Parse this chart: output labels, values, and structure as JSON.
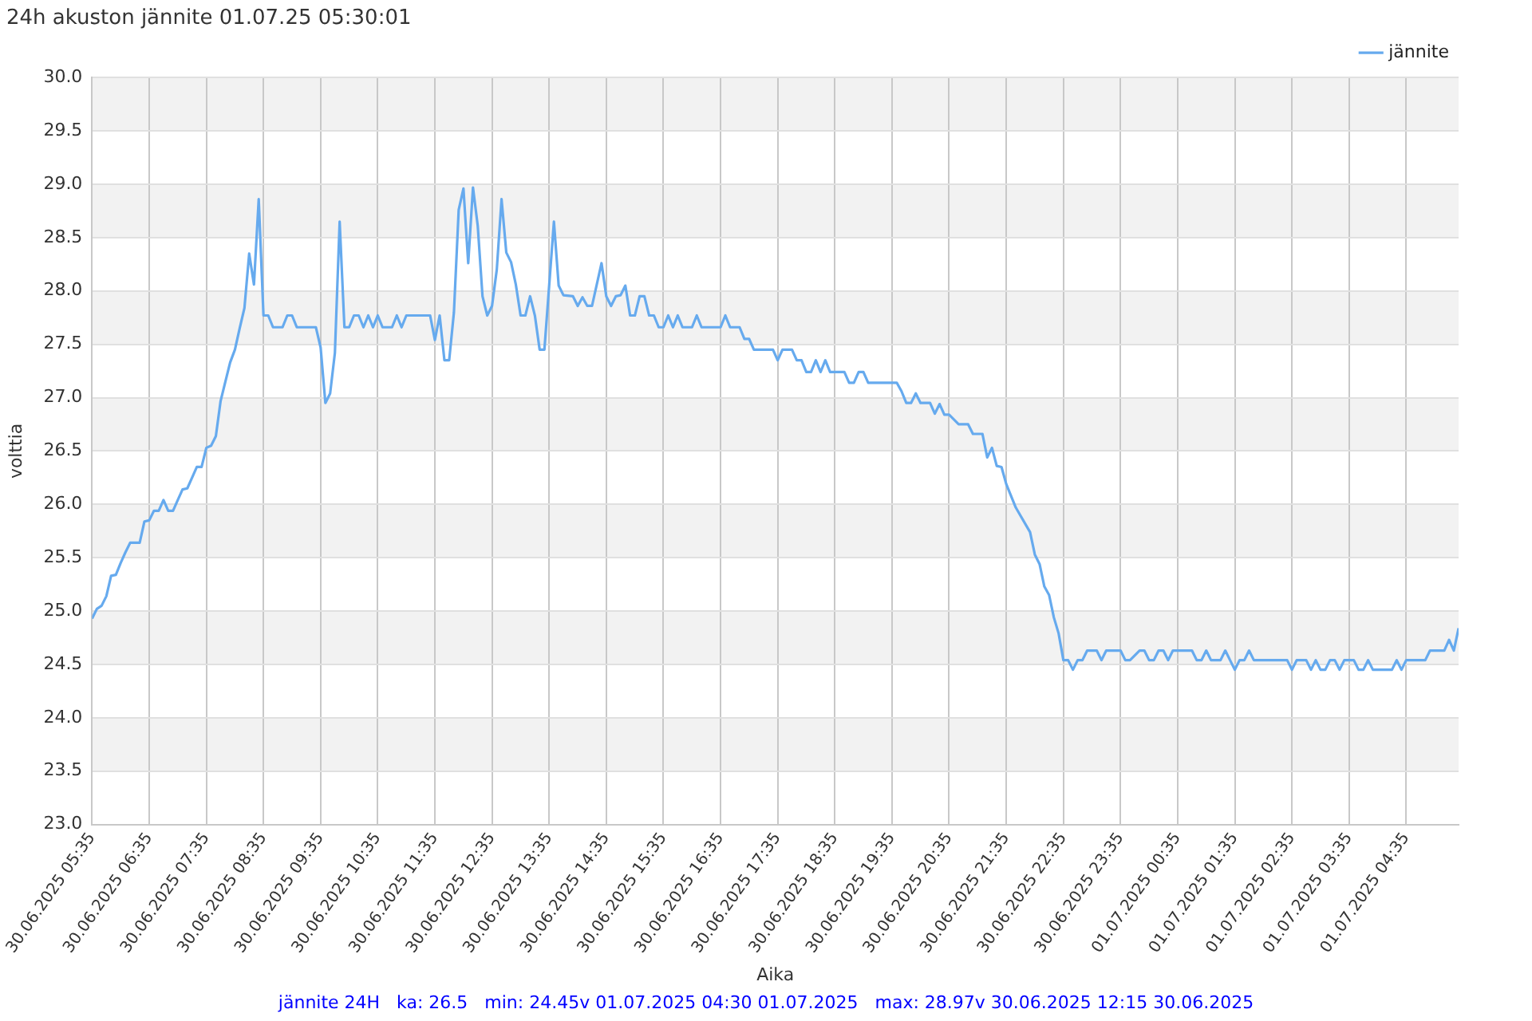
{
  "chart_data": {
    "type": "line",
    "title": "24h akuston jännite 01.07.25 05:30:01",
    "xlabel": "Aika",
    "ylabel": "volttia",
    "annotations": [
      "jännite 24H   ka: 26.5   min: 24.45v 01.07.2025 04:30 01.07.2025   max: 28.97v 30.06.2025 12:15 30.06.2025"
    ],
    "legend": "top right",
    "grid": true,
    "marker": "none",
    "line_style": "solid",
    "xlim": [
      "2025-06-30T05:35",
      "2025-07-01T05:30"
    ],
    "xticks": [
      {
        "value": "2025-06-30T05:35",
        "label": "30.06.2025 05:35"
      },
      {
        "value": "2025-06-30T06:35",
        "label": "30.06.2025 06:35"
      },
      {
        "value": "2025-06-30T07:35",
        "label": "30.06.2025 07:35"
      },
      {
        "value": "2025-06-30T08:35",
        "label": "30.06.2025 08:35"
      },
      {
        "value": "2025-06-30T09:35",
        "label": "30.06.2025 09:35"
      },
      {
        "value": "2025-06-30T10:35",
        "label": "30.06.2025 10:35"
      },
      {
        "value": "2025-06-30T11:35",
        "label": "30.06.2025 11:35"
      },
      {
        "value": "2025-06-30T12:35",
        "label": "30.06.2025 12:35"
      },
      {
        "value": "2025-06-30T13:35",
        "label": "30.06.2025 13:35"
      },
      {
        "value": "2025-06-30T14:35",
        "label": "30.06.2025 14:35"
      },
      {
        "value": "2025-06-30T15:35",
        "label": "30.06.2025 15:35"
      },
      {
        "value": "2025-06-30T16:35",
        "label": "30.06.2025 16:35"
      },
      {
        "value": "2025-06-30T17:35",
        "label": "30.06.2025 17:35"
      },
      {
        "value": "2025-06-30T18:35",
        "label": "30.06.2025 18:35"
      },
      {
        "value": "2025-06-30T19:35",
        "label": "30.06.2025 19:35"
      },
      {
        "value": "2025-06-30T20:35",
        "label": "30.06.2025 20:35"
      },
      {
        "value": "2025-06-30T21:35",
        "label": "30.06.2025 21:35"
      },
      {
        "value": "2025-06-30T22:35",
        "label": "30.06.2025 22:35"
      },
      {
        "value": "2025-06-30T23:35",
        "label": "30.06.2025 23:35"
      },
      {
        "value": "2025-07-01T00:35",
        "label": "01.07.2025 00:35"
      },
      {
        "value": "2025-07-01T01:35",
        "label": "01.07.2025 01:35"
      },
      {
        "value": "2025-07-01T02:35",
        "label": "01.07.2025 02:35"
      },
      {
        "value": "2025-07-01T03:35",
        "label": "01.07.2025 03:35"
      },
      {
        "value": "2025-07-01T04:35",
        "label": "01.07.2025 04:35"
      }
    ],
    "ylim": [
      23,
      30
    ],
    "yticks": [
      {
        "value": 23,
        "label": "23.0"
      },
      23.5,
      {
        "value": 24,
        "label": "24.0"
      },
      24.5,
      {
        "value": 25,
        "label": "25.0"
      },
      25.5,
      {
        "value": 26,
        "label": "26.0"
      },
      26.5,
      {
        "value": 27,
        "label": "27.0"
      },
      27.5,
      {
        "value": 28,
        "label": "28.0"
      },
      28.5,
      {
        "value": 29,
        "label": "29.0"
      },
      29.5,
      {
        "value": 30,
        "label": "30.0"
      }
    ],
    "bands": [
      {
        "axis": "y",
        "from": 23.5,
        "to": 24,
        "color": "#f2f2f2"
      },
      {
        "axis": "y",
        "from": 24.5,
        "to": 25,
        "color": "#f2f2f2"
      },
      {
        "axis": "y",
        "from": 25.5,
        "to": 26,
        "color": "#f2f2f2"
      },
      {
        "axis": "y",
        "from": 26.5,
        "to": 27,
        "color": "#f2f2f2"
      },
      {
        "axis": "y",
        "from": 27.5,
        "to": 28,
        "color": "#f2f2f2"
      },
      {
        "axis": "y",
        "from": 28.5,
        "to": 29,
        "color": "#f2f2f2"
      },
      {
        "axis": "y",
        "from": 29.5,
        "to": 30,
        "color": "#f2f2f2"
      }
    ],
    "x": [
      "2025-06-30T05:35",
      "2025-06-30T05:40",
      "2025-06-30T05:45",
      "2025-06-30T05:50",
      "2025-06-30T05:55",
      "2025-06-30T06:00",
      "2025-06-30T06:05",
      "2025-06-30T06:10",
      "2025-06-30T06:15",
      "2025-06-30T06:25",
      "2025-06-30T06:30",
      "2025-06-30T06:35",
      "2025-06-30T06:40",
      "2025-06-30T06:45",
      "2025-06-30T06:50",
      "2025-06-30T06:55",
      "2025-06-30T07:00",
      "2025-06-30T07:05",
      "2025-06-30T07:10",
      "2025-06-30T07:15",
      "2025-06-30T07:20",
      "2025-06-30T07:25",
      "2025-06-30T07:30",
      "2025-06-30T07:35",
      "2025-06-30T07:40",
      "2025-06-30T07:45",
      "2025-06-30T07:50",
      "2025-06-30T07:55",
      "2025-06-30T08:00",
      "2025-06-30T08:05",
      "2025-06-30T08:10",
      "2025-06-30T08:15",
      "2025-06-30T08:20",
      "2025-06-30T08:25",
      "2025-06-30T08:30",
      "2025-06-30T08:35",
      "2025-06-30T08:40",
      "2025-06-30T08:45",
      "2025-06-30T08:55",
      "2025-06-30T09:00",
      "2025-06-30T09:05",
      "2025-06-30T09:10",
      "2025-06-30T09:30",
      "2025-06-30T09:35",
      "2025-06-30T09:40",
      "2025-06-30T09:45",
      "2025-06-30T09:50",
      "2025-06-30T09:55",
      "2025-06-30T10:00",
      "2025-06-30T10:05",
      "2025-06-30T10:10",
      "2025-06-30T10:15",
      "2025-06-30T10:20",
      "2025-06-30T10:25",
      "2025-06-30T10:30",
      "2025-06-30T10:35",
      "2025-06-30T10:40",
      "2025-06-30T10:50",
      "2025-06-30T10:55",
      "2025-06-30T11:00",
      "2025-06-30T11:05",
      "2025-06-30T11:30",
      "2025-06-30T11:35",
      "2025-06-30T11:40",
      "2025-06-30T11:45",
      "2025-06-30T11:50",
      "2025-06-30T11:55",
      "2025-06-30T12:00",
      "2025-06-30T12:05",
      "2025-06-30T12:10",
      "2025-06-30T12:15",
      "2025-06-30T12:20",
      "2025-06-30T12:25",
      "2025-06-30T12:30",
      "2025-06-30T12:35",
      "2025-06-30T12:40",
      "2025-06-30T12:45",
      "2025-06-30T12:50",
      "2025-06-30T12:55",
      "2025-06-30T13:00",
      "2025-06-30T13:05",
      "2025-06-30T13:10",
      "2025-06-30T13:15",
      "2025-06-30T13:20",
      "2025-06-30T13:25",
      "2025-06-30T13:30",
      "2025-06-30T13:40",
      "2025-06-30T13:45",
      "2025-06-30T13:50",
      "2025-06-30T14:00",
      "2025-06-30T14:05",
      "2025-06-30T14:10",
      "2025-06-30T14:15",
      "2025-06-30T14:20",
      "2025-06-30T14:30",
      "2025-06-30T14:35",
      "2025-06-30T14:40",
      "2025-06-30T14:45",
      "2025-06-30T14:50",
      "2025-06-30T14:55",
      "2025-06-30T15:00",
      "2025-06-30T15:05",
      "2025-06-30T15:10",
      "2025-06-30T15:15",
      "2025-06-30T15:20",
      "2025-06-30T15:25",
      "2025-06-30T15:30",
      "2025-06-30T15:35",
      "2025-06-30T15:40",
      "2025-06-30T15:45",
      "2025-06-30T15:50",
      "2025-06-30T15:55",
      "2025-06-30T16:05",
      "2025-06-30T16:10",
      "2025-06-30T16:15",
      "2025-06-30T16:35",
      "2025-06-30T16:40",
      "2025-06-30T16:45",
      "2025-06-30T16:55",
      "2025-06-30T17:00",
      "2025-06-30T17:05",
      "2025-06-30T17:10",
      "2025-06-30T17:30",
      "2025-06-30T17:35",
      "2025-06-30T17:40",
      "2025-06-30T17:50",
      "2025-06-30T17:55",
      "2025-06-30T18:00",
      "2025-06-30T18:05",
      "2025-06-30T18:10",
      "2025-06-30T18:15",
      "2025-06-30T18:20",
      "2025-06-30T18:25",
      "2025-06-30T18:30",
      "2025-06-30T18:45",
      "2025-06-30T18:50",
      "2025-06-30T18:55",
      "2025-06-30T19:00",
      "2025-06-30T19:05",
      "2025-06-30T19:10",
      "2025-06-30T19:40",
      "2025-06-30T19:45",
      "2025-06-30T19:50",
      "2025-06-30T19:55",
      "2025-06-30T20:00",
      "2025-06-30T20:05",
      "2025-06-30T20:15",
      "2025-06-30T20:20",
      "2025-06-30T20:25",
      "2025-06-30T20:30",
      "2025-06-30T20:35",
      "2025-06-30T20:45",
      "2025-06-30T20:55",
      "2025-06-30T21:00",
      "2025-06-30T21:10",
      "2025-06-30T21:15",
      "2025-06-30T21:20",
      "2025-06-30T21:25",
      "2025-06-30T21:30",
      "2025-06-30T21:35",
      "2025-06-30T21:45",
      "2025-06-30T22:00",
      "2025-06-30T22:05",
      "2025-06-30T22:10",
      "2025-06-30T22:15",
      "2025-06-30T22:20",
      "2025-06-30T22:25",
      "2025-06-30T22:30",
      "2025-06-30T22:35",
      "2025-06-30T22:40",
      "2025-06-30T22:45",
      "2025-06-30T22:50",
      "2025-06-30T22:55",
      "2025-06-30T23:00",
      "2025-06-30T23:10",
      "2025-06-30T23:15",
      "2025-06-30T23:20",
      "2025-06-30T23:35",
      "2025-06-30T23:40",
      "2025-06-30T23:45",
      "2025-06-30T23:55",
      "2025-07-01T00:00",
      "2025-07-01T00:05",
      "2025-07-01T00:10",
      "2025-07-01T00:15",
      "2025-07-01T00:20",
      "2025-07-01T00:25",
      "2025-07-01T00:30",
      "2025-07-01T00:50",
      "2025-07-01T00:55",
      "2025-07-01T01:00",
      "2025-07-01T01:05",
      "2025-07-01T01:10",
      "2025-07-01T01:20",
      "2025-07-01T01:25",
      "2025-07-01T01:30",
      "2025-07-01T01:35",
      "2025-07-01T01:40",
      "2025-07-01T01:45",
      "2025-07-01T01:50",
      "2025-07-01T01:55",
      "2025-07-01T02:30",
      "2025-07-01T02:35",
      "2025-07-01T02:40",
      "2025-07-01T02:50",
      "2025-07-01T02:55",
      "2025-07-01T03:00",
      "2025-07-01T03:05",
      "2025-07-01T03:10",
      "2025-07-01T03:15",
      "2025-07-01T03:20",
      "2025-07-01T03:25",
      "2025-07-01T03:30",
      "2025-07-01T03:40",
      "2025-07-01T03:45",
      "2025-07-01T03:50",
      "2025-07-01T03:55",
      "2025-07-01T04:00",
      "2025-07-01T04:20",
      "2025-07-01T04:25",
      "2025-07-01T04:30",
      "2025-07-01T04:35",
      "2025-07-01T04:55",
      "2025-07-01T05:00",
      "2025-07-01T05:15",
      "2025-07-01T05:20",
      "2025-07-01T05:25",
      "2025-07-01T05:30"
    ],
    "series": [
      {
        "name": "jännite",
        "color": "#66aaee",
        "values": [
          24.93,
          25.02,
          25.05,
          25.14,
          25.33,
          25.34,
          25.45,
          25.55,
          25.64,
          25.64,
          25.84,
          25.85,
          25.94,
          25.94,
          26.04,
          25.94,
          25.94,
          26.04,
          26.14,
          26.15,
          26.25,
          26.35,
          26.35,
          26.53,
          26.55,
          26.64,
          26.97,
          27.15,
          27.33,
          27.45,
          27.65,
          27.84,
          28.35,
          28.06,
          28.86,
          27.77,
          27.77,
          27.66,
          27.66,
          27.77,
          27.77,
          27.66,
          27.66,
          27.47,
          26.95,
          27.04,
          27.42,
          28.65,
          27.66,
          27.66,
          27.77,
          27.77,
          27.66,
          27.77,
          27.66,
          27.77,
          27.66,
          27.66,
          27.77,
          27.66,
          27.77,
          27.77,
          27.54,
          27.77,
          27.35,
          27.35,
          27.8,
          28.76,
          28.96,
          28.26,
          28.97,
          28.61,
          27.95,
          27.77,
          27.86,
          28.2,
          28.86,
          28.36,
          28.27,
          28.06,
          27.77,
          27.77,
          27.95,
          27.77,
          27.45,
          27.45,
          28.65,
          28.05,
          27.96,
          27.95,
          27.86,
          27.94,
          27.86,
          27.86,
          28.26,
          27.95,
          27.86,
          27.95,
          27.96,
          28.05,
          27.77,
          27.77,
          27.95,
          27.95,
          27.77,
          27.77,
          27.66,
          27.66,
          27.77,
          27.66,
          27.77,
          27.66,
          27.66,
          27.77,
          27.66,
          27.66,
          27.77,
          27.66,
          27.66,
          27.55,
          27.55,
          27.45,
          27.45,
          27.35,
          27.45,
          27.45,
          27.35,
          27.35,
          27.24,
          27.24,
          27.35,
          27.24,
          27.35,
          27.24,
          27.24,
          27.14,
          27.14,
          27.24,
          27.24,
          27.14,
          27.14,
          27.06,
          26.95,
          26.95,
          27.04,
          26.95,
          26.95,
          26.85,
          26.94,
          26.84,
          26.84,
          26.75,
          26.75,
          26.66,
          26.66,
          26.44,
          26.53,
          26.36,
          26.35,
          26.19,
          25.97,
          25.74,
          25.53,
          25.44,
          25.23,
          25.15,
          24.94,
          24.79,
          24.54,
          24.54,
          24.45,
          24.54,
          24.54,
          24.63,
          24.63,
          24.54,
          24.63,
          24.63,
          24.54,
          24.54,
          24.63,
          24.63,
          24.54,
          24.54,
          24.63,
          24.63,
          24.54,
          24.63,
          24.63,
          24.54,
          24.54,
          24.63,
          24.54,
          24.54,
          24.63,
          24.54,
          24.45,
          24.54,
          24.54,
          24.63,
          24.54,
          24.54,
          24.45,
          24.54,
          24.54,
          24.45,
          24.54,
          24.45,
          24.45,
          24.54,
          24.54,
          24.45,
          24.54,
          24.54,
          24.45,
          24.45,
          24.54,
          24.45,
          24.45,
          24.54,
          24.45,
          24.54,
          24.54,
          24.63,
          24.63,
          24.73,
          24.63,
          24.84
        ]
      }
    ]
  }
}
